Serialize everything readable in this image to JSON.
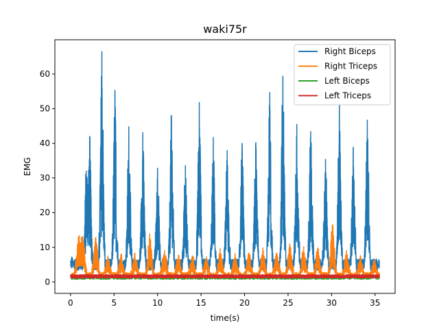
{
  "chart_data": {
    "type": "line",
    "title": "waki75r",
    "xlabel": "time(s)",
    "ylabel": "EMG",
    "xlim": [
      -1.8,
      37.3
    ],
    "ylim": [
      -3.3,
      69.9
    ],
    "xticks": [
      0,
      5,
      10,
      15,
      20,
      25,
      30,
      35
    ],
    "yticks": [
      0,
      10,
      20,
      30,
      40,
      50,
      60
    ],
    "grid": false,
    "legend_position": "upper right",
    "duration_s": 35.5,
    "series": [
      {
        "name": "Right Biceps",
        "color": "#1f77b4",
        "baseline": 5,
        "burst_times": [
          0.2,
          1.8,
          2.2,
          3.6,
          5.1,
          6.7,
          8.3,
          10.0,
          11.6,
          13.2,
          14.8,
          16.4,
          18.0,
          19.7,
          21.3,
          22.9,
          24.4,
          26.0,
          27.6,
          29.3,
          30.9,
          32.5,
          34.1
        ],
        "burst_peaks": [
          6,
          32,
          42,
          66.5,
          55.3,
          44.8,
          43.1,
          32.8,
          47.8,
          33.6,
          51.8,
          41.7,
          37.9,
          39.4,
          40.2,
          54.7,
          59.4,
          45.5,
          43.4,
          35.4,
          51.3,
          38.9,
          46.7
        ]
      },
      {
        "name": "Right Triceps",
        "color": "#ff7f0e",
        "baseline": 2,
        "burst_times": [
          0.9,
          1.4,
          2.9,
          4.3,
          5.8,
          7.4,
          9.1,
          10.8,
          12.4,
          14.0,
          15.6,
          17.2,
          18.9,
          20.5,
          22.1,
          23.7,
          25.2,
          26.8,
          28.4,
          30.1,
          31.7,
          33.3,
          34.9
        ],
        "burst_peaks": [
          13,
          13,
          12.8,
          7.5,
          8,
          8.2,
          13.8,
          9.1,
          7.7,
          7.5,
          7.2,
          9.6,
          8.2,
          8.3,
          9.8,
          8.3,
          10.7,
          10.2,
          9.8,
          16.5,
          8.6,
          7.6,
          6.4
        ]
      },
      {
        "name": "Left Biceps",
        "color": "#2ca02c",
        "baseline": 1.4
      },
      {
        "name": "Left Triceps",
        "color": "#d62728",
        "baseline": 1.6
      }
    ]
  }
}
